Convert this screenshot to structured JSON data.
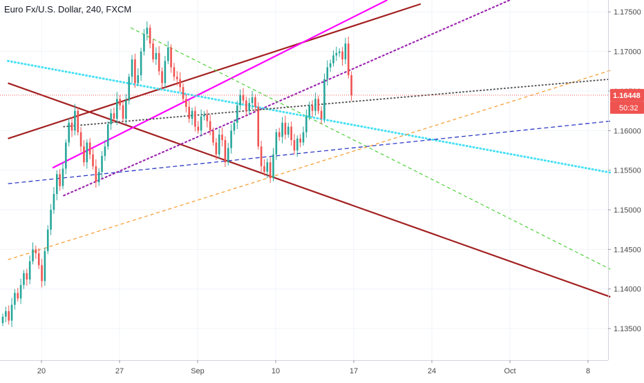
{
  "header": {
    "symbol_title": "Euro Fx/U.S. Dollar, 240, FXCM"
  },
  "price_axis": {
    "ticks": [
      "1.17500",
      "1.17000",
      "1.16500",
      "1.16000",
      "1.15500",
      "1.15000",
      "1.14500",
      "1.14000",
      "1.13500"
    ],
    "tick_values": [
      1.175,
      1.17,
      1.165,
      1.16,
      1.155,
      1.15,
      1.145,
      1.14,
      1.135
    ],
    "last_price_label": "1.16448",
    "countdown_label": "50:32",
    "last_price": 1.16448
  },
  "time_axis": {
    "ticks": [
      "20",
      "27",
      "Sep",
      "10",
      "17",
      "24",
      "Oct",
      "8"
    ]
  },
  "colors": {
    "bull": "#26a69a",
    "bear": "#ef5350",
    "price_label_bg": "#ef5350",
    "trend_dark_red": "#a31f1f",
    "trend_magenta": "#ff00ff",
    "trend_purple_dotted": "#9c27b0",
    "trend_green_dashed": "#4cd137",
    "trend_cyan_dotted": "#45e0f5",
    "trend_blue_dashed": "#2b39c4",
    "trend_orange_dashed": "#f7a035",
    "trend_gray_dotted": "#555555"
  },
  "chart_data": {
    "type": "candlestick",
    "title": "Euro Fx/U.S. Dollar, 240, FXCM",
    "ylim": [
      1.131,
      1.1765
    ],
    "last_price": 1.16448,
    "close_series": [
      1.1365,
      1.1372,
      1.136,
      1.138,
      1.1395,
      1.1388,
      1.1405,
      1.142,
      1.1412,
      1.1435,
      1.145,
      1.1445,
      1.143,
      1.141,
      1.1448,
      1.1475,
      1.15,
      1.152,
      1.1545,
      1.153,
      1.1552,
      1.1585,
      1.161,
      1.16,
      1.1625,
      1.1598,
      1.158,
      1.156,
      1.1585,
      1.157,
      1.1555,
      1.1535,
      1.1548,
      1.1568,
      1.158,
      1.1608,
      1.1622,
      1.1615,
      1.164,
      1.1632,
      1.1615,
      1.1638,
      1.1668,
      1.169,
      1.166,
      1.167,
      1.17,
      1.1722,
      1.173,
      1.171,
      1.169,
      1.1698,
      1.1675,
      1.166,
      1.1688,
      1.1705,
      1.168,
      1.1668,
      1.1665,
      1.1655,
      1.164,
      1.163,
      1.1615,
      1.1625,
      1.1605,
      1.16,
      1.1618,
      1.162,
      1.1612,
      1.16,
      1.1585,
      1.157,
      1.1595,
      1.1588,
      1.156,
      1.1578,
      1.16,
      1.161,
      1.1632,
      1.1645,
      1.1638,
      1.1625,
      1.1635,
      1.1642,
      1.163,
      1.158,
      1.1555,
      1.1548,
      1.156,
      1.154,
      1.157,
      1.1598,
      1.1592,
      1.161,
      1.1595,
      1.1605,
      1.1588,
      1.1575,
      1.159,
      1.1585,
      1.1598,
      1.1618,
      1.1632,
      1.1625,
      1.164,
      1.1625,
      1.1615,
      1.1665,
      1.168,
      1.1685,
      1.1695,
      1.1698,
      1.17,
      1.169,
      1.171,
      1.167,
      1.16448
    ],
    "x_categories": [
      "20",
      "27",
      "Sep",
      "10",
      "17",
      "24",
      "Oct",
      "8"
    ],
    "annotations": [
      {
        "name": "dark-red-upper-channel-line",
        "style": "solid",
        "from": [
          "17 Aug",
          1.159
        ],
        "to": [
          "23 Sep",
          1.176
        ]
      },
      {
        "name": "dark-red-descending-line",
        "style": "solid",
        "from": [
          "17 Aug",
          1.166
        ],
        "to": [
          "10 Oct",
          1.139
        ]
      },
      {
        "name": "magenta-rising-line",
        "style": "solid",
        "from": [
          "21 Aug",
          1.1553
        ],
        "to": [
          "20 Sep",
          1.1765
        ]
      },
      {
        "name": "purple-dotted-line",
        "style": "dotted",
        "from": [
          "22 Aug",
          1.1518
        ],
        "to": [
          "1 Oct",
          1.1765
        ]
      },
      {
        "name": "green-dashed-line",
        "style": "dashed",
        "from": [
          "28 Aug",
          1.173
        ],
        "to": [
          "10 Oct",
          1.1425
        ]
      },
      {
        "name": "cyan-dotted-line",
        "style": "dotted",
        "from": [
          "17 Aug",
          1.1688
        ],
        "to": [
          "10 Oct",
          1.1547
        ]
      },
      {
        "name": "blue-dashed-line",
        "style": "dashed",
        "from": [
          "17 Aug",
          1.1533
        ],
        "to": [
          "10 Oct",
          1.1612
        ]
      },
      {
        "name": "orange-dashed-line",
        "style": "dashed",
        "from": [
          "17 Aug",
          1.1437
        ],
        "to": [
          "10 Oct",
          1.1676
        ]
      },
      {
        "name": "gray-dotted-line",
        "style": "dotted",
        "from": [
          "22 Aug",
          1.1605
        ],
        "to": [
          "10 Oct",
          1.1665
        ]
      }
    ]
  }
}
